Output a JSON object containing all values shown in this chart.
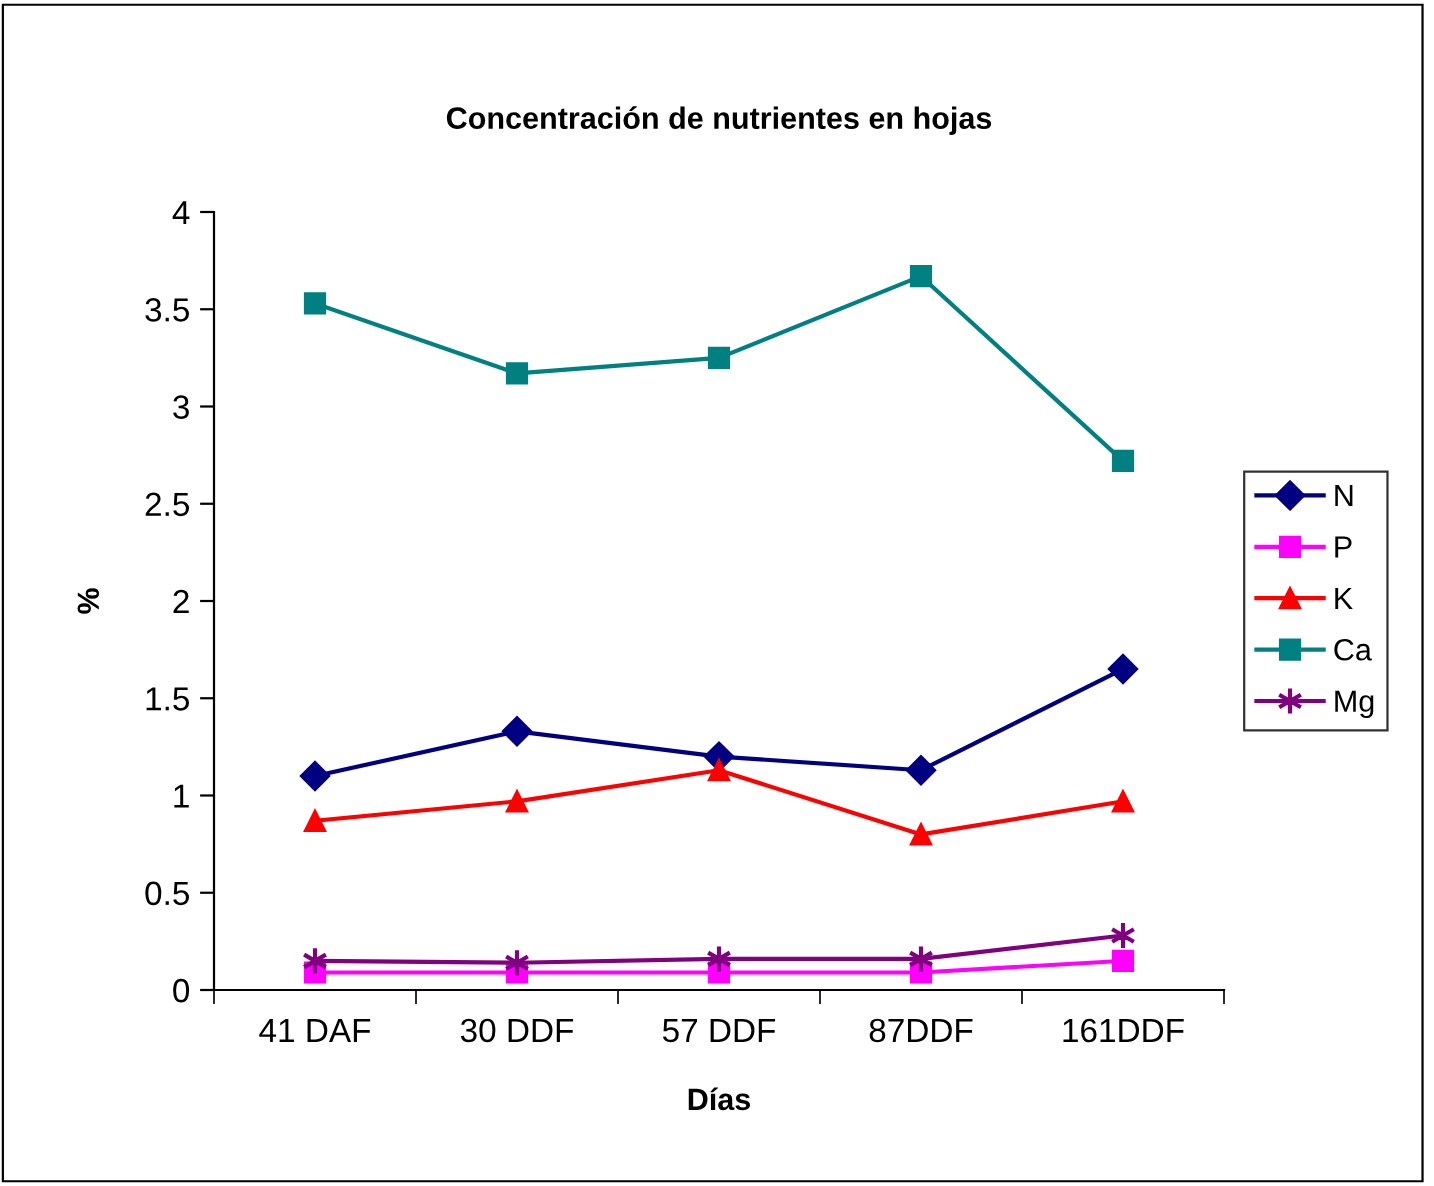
{
  "chart_data": {
    "type": "line",
    "title": "Concentración de nutrientes en hojas",
    "xlabel": "Días",
    "ylabel": "%",
    "categories": [
      "41 DAF",
      "30 DDF",
      "57 DDF",
      "87DDF",
      "161DDF"
    ],
    "ylim": [
      0,
      4
    ],
    "yticks": [
      0,
      {
        "value": 0.5,
        "label": "0.5"
      },
      1,
      {
        "value": 1.5,
        "label": "1.5"
      },
      2,
      {
        "value": 2.5,
        "label": "2.5"
      },
      3,
      {
        "value": 3.5,
        "label": "3.5"
      },
      4
    ],
    "grid": false,
    "legend": "right",
    "line_style": "solid",
    "series": [
      {
        "name": "N",
        "color": "#000080",
        "marker": "diamond",
        "values": [
          1.1,
          1.33,
          1.2,
          1.13,
          1.65
        ]
      },
      {
        "name": "P",
        "color": "#ff00ff",
        "marker": "square",
        "values": [
          0.09,
          0.09,
          0.09,
          0.09,
          0.15
        ]
      },
      {
        "name": "K",
        "color": "#ff0000",
        "marker": "triangle",
        "values": [
          0.87,
          0.97,
          1.13,
          0.8,
          0.97
        ]
      },
      {
        "name": "Ca",
        "color": "#008080",
        "marker": "square",
        "values": [
          3.53,
          3.17,
          3.25,
          3.67,
          2.72
        ]
      },
      {
        "name": "Mg",
        "color": "#800080",
        "marker": "cross",
        "values": [
          0.15,
          0.14,
          0.16,
          0.16,
          0.28
        ]
      }
    ]
  }
}
